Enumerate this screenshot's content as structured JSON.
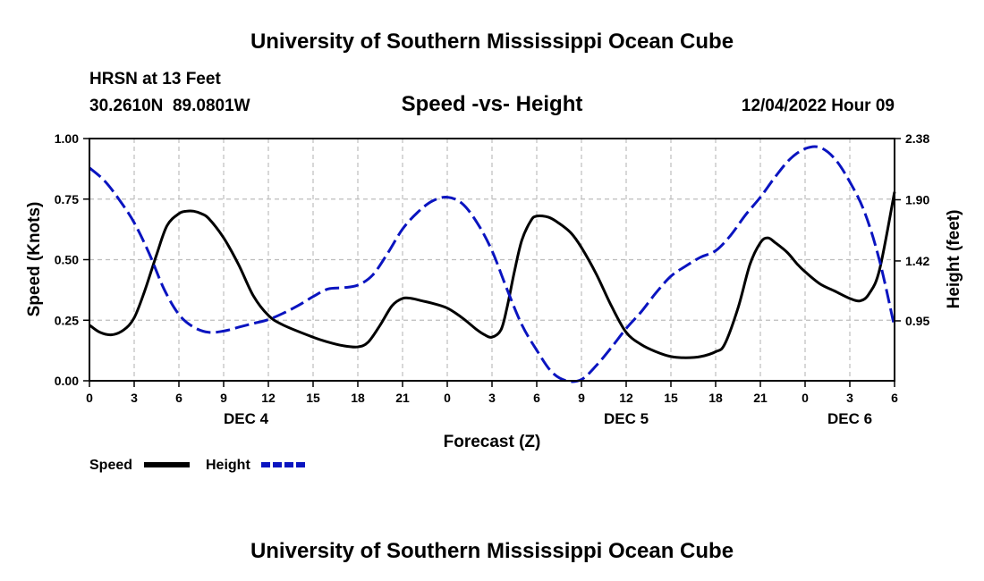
{
  "chart_data": {
    "type": "line",
    "title": "University of Southern Mississippi Ocean Cube",
    "footer_title": "University of Southern Mississippi Ocean Cube",
    "station": "HRSN at 13 Feet",
    "coordinates": "30.2610N  89.0801W",
    "subtitle": "Speed -vs- Height",
    "timestamp": "12/04/2022 Hour 09",
    "xlabel": "Forecast (Z)",
    "ylabel_left": "Speed (Knots)",
    "ylabel_right": "Height (feet)",
    "x_ticks": [
      {
        "hour": 0,
        "label": "0"
      },
      {
        "hour": 3,
        "label": "3"
      },
      {
        "hour": 6,
        "label": "6"
      },
      {
        "hour": 9,
        "label": "9"
      },
      {
        "hour": 12,
        "label": "12"
      },
      {
        "hour": 15,
        "label": "15"
      },
      {
        "hour": 18,
        "label": "18"
      },
      {
        "hour": 21,
        "label": "21"
      },
      {
        "hour": 24,
        "label": "0"
      },
      {
        "hour": 27,
        "label": "3"
      },
      {
        "hour": 30,
        "label": "6"
      },
      {
        "hour": 33,
        "label": "9"
      },
      {
        "hour": 36,
        "label": "12"
      },
      {
        "hour": 39,
        "label": "15"
      },
      {
        "hour": 42,
        "label": "18"
      },
      {
        "hour": 45,
        "label": "21"
      },
      {
        "hour": 48,
        "label": "0"
      },
      {
        "hour": 51,
        "label": "3"
      },
      {
        "hour": 54,
        "label": "6"
      }
    ],
    "date_labels": [
      {
        "hour": 10.5,
        "label": "DEC 4"
      },
      {
        "hour": 36,
        "label": "DEC 5"
      },
      {
        "hour": 51,
        "label": "DEC 6"
      }
    ],
    "xlim": [
      0,
      54
    ],
    "ylim_left": [
      0,
      1
    ],
    "ylim_right": [
      0.48,
      2.38
    ],
    "y_ticks_left": [
      {
        "value": 0,
        "label": "0.00"
      },
      {
        "value": 0.25,
        "label": "0.25"
      },
      {
        "value": 0.5,
        "label": "0.50"
      },
      {
        "value": 0.75,
        "label": "0.75"
      },
      {
        "value": 1,
        "label": "1.00"
      }
    ],
    "y_ticks_right": [
      {
        "value": 0.95,
        "label": "0.95"
      },
      {
        "value": 1.42,
        "label": "1.42"
      },
      {
        "value": 1.9,
        "label": "1.90"
      },
      {
        "value": 2.38,
        "label": "2.38"
      }
    ],
    "grid": true,
    "legend_position": "bottom-left",
    "series": [
      {
        "name": "Speed",
        "axis": "left",
        "color": "#000000",
        "dashed": false,
        "x": [
          0,
          0.7,
          1.5,
          2.3,
          3,
          3.7,
          4.5,
          5.2,
          6,
          6.5,
          7,
          7.5,
          8,
          9,
          10,
          11,
          12,
          13,
          15,
          16,
          17,
          18,
          18.7,
          19.5,
          20.3,
          21,
          21.6,
          22.3,
          23,
          24,
          25,
          26,
          26.5,
          27,
          27.6,
          28,
          28.5,
          29,
          29.6,
          30,
          30.8,
          31.5,
          32.3,
          33,
          34,
          35,
          36,
          37,
          38,
          39,
          40,
          41,
          42,
          42.6,
          43.5,
          44.3,
          45,
          45.5,
          46,
          46.8,
          47.5,
          48,
          49,
          50,
          51,
          51.7,
          52.3,
          53,
          54
        ],
        "y": [
          0.23,
          0.2,
          0.19,
          0.21,
          0.26,
          0.37,
          0.52,
          0.64,
          0.69,
          0.7,
          0.7,
          0.69,
          0.67,
          0.59,
          0.48,
          0.35,
          0.27,
          0.23,
          0.18,
          0.16,
          0.145,
          0.14,
          0.16,
          0.23,
          0.31,
          0.34,
          0.34,
          0.33,
          0.32,
          0.3,
          0.26,
          0.21,
          0.19,
          0.18,
          0.21,
          0.3,
          0.45,
          0.58,
          0.66,
          0.68,
          0.675,
          0.65,
          0.61,
          0.55,
          0.44,
          0.31,
          0.2,
          0.15,
          0.12,
          0.1,
          0.095,
          0.1,
          0.12,
          0.15,
          0.3,
          0.48,
          0.57,
          0.59,
          0.57,
          0.53,
          0.48,
          0.45,
          0.4,
          0.37,
          0.34,
          0.33,
          0.36,
          0.46,
          0.78
        ]
      },
      {
        "name": "Height",
        "axis": "right",
        "color": "#0a14c0",
        "dashed": true,
        "x": [
          0,
          1,
          2,
          3,
          4,
          5,
          6,
          7,
          8,
          9,
          10,
          11,
          12,
          13,
          14,
          15,
          16,
          17,
          18,
          19,
          20,
          21,
          22,
          23,
          24,
          25,
          26,
          27,
          28,
          29,
          30,
          31,
          32,
          33,
          34,
          35,
          36,
          37,
          38,
          39,
          40,
          41,
          42,
          43,
          44,
          45,
          46,
          47,
          48,
          49,
          50,
          51,
          52,
          53,
          54
        ],
        "y": [
          2.15,
          2.05,
          1.9,
          1.72,
          1.48,
          1.2,
          1.0,
          0.9,
          0.86,
          0.87,
          0.9,
          0.93,
          0.96,
          1.01,
          1.07,
          1.14,
          1.2,
          1.21,
          1.23,
          1.31,
          1.48,
          1.67,
          1.8,
          1.89,
          1.92,
          1.87,
          1.72,
          1.5,
          1.2,
          0.92,
          0.72,
          0.55,
          0.48,
          0.49,
          0.6,
          0.74,
          0.89,
          1.02,
          1.17,
          1.3,
          1.38,
          1.45,
          1.5,
          1.62,
          1.78,
          1.92,
          2.08,
          2.22,
          2.3,
          2.31,
          2.22,
          2.04,
          1.8,
          1.42,
          0.9
        ]
      }
    ]
  }
}
